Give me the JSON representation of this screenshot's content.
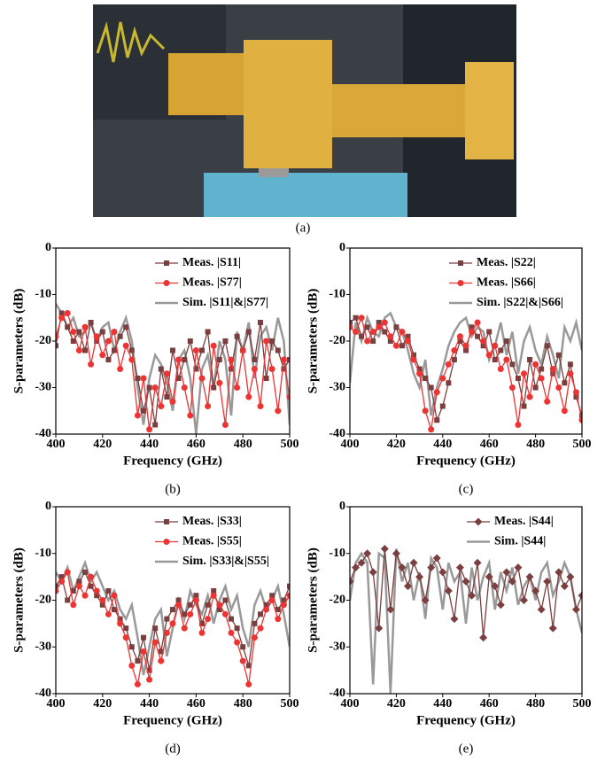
{
  "photo": {
    "caption": "(a)"
  },
  "chart_data": [
    {
      "type": "line",
      "caption": "(b)",
      "xlabel": "Frequency (GHz)",
      "ylabel": "S-parameters (dB)",
      "xlim": [
        400,
        500
      ],
      "ylim": [
        -40,
        0
      ],
      "xticks": [
        400,
        420,
        440,
        460,
        480,
        500
      ],
      "yticks": [
        -40,
        -30,
        -20,
        -10,
        0
      ],
      "x": [
        400,
        402.5,
        405,
        407.5,
        410,
        412.5,
        415,
        417.5,
        420,
        422.5,
        425,
        427.5,
        430,
        432.5,
        435,
        437.5,
        440,
        442.5,
        445,
        447.5,
        450,
        452.5,
        455,
        457.5,
        460,
        462.5,
        465,
        467.5,
        470,
        472.5,
        475,
        477.5,
        480,
        482.5,
        485,
        487.5,
        490,
        492.5,
        495,
        497.5,
        500
      ],
      "series": [
        {
          "name": "Meas. |S11|",
          "color": "#7b3f3f",
          "marker": "square",
          "values": [
            -21,
            -14,
            -17,
            -20,
            -18,
            -22,
            -16,
            -20,
            -18,
            -24,
            -22,
            -19,
            -17,
            -22,
            -28,
            -35,
            -30,
            -38,
            -26,
            -32,
            -22,
            -28,
            -24,
            -20,
            -26,
            -22,
            -18,
            -30,
            -24,
            -20,
            -26,
            -19,
            -22,
            -18,
            -24,
            -16,
            -28,
            -20,
            -22,
            -26,
            -24
          ]
        },
        {
          "name": "Meas. |S77|",
          "color": "#ee3333",
          "marker": "circle",
          "values": [
            -19,
            -15,
            -14,
            -18,
            -22,
            -17,
            -25,
            -19,
            -23,
            -20,
            -18,
            -26,
            -21,
            -24,
            -36,
            -28,
            -39,
            -30,
            -34,
            -27,
            -33,
            -24,
            -30,
            -36,
            -22,
            -28,
            -34,
            -21,
            -29,
            -38,
            -24,
            -30,
            -22,
            -32,
            -26,
            -34,
            -20,
            -26,
            -35,
            -24,
            -32
          ]
        },
        {
          "name": "Sim. |S11|&|S77|",
          "color": "#999999",
          "marker": "none",
          "values": [
            -12,
            -14,
            -17,
            -15,
            -19,
            -18,
            -16,
            -20,
            -17,
            -16,
            -22,
            -18,
            -15,
            -20,
            -30,
            -38,
            -28,
            -23,
            -25,
            -29,
            -35,
            -24,
            -22,
            -28,
            -40,
            -26,
            -23,
            -30,
            -20,
            -24,
            -36,
            -18,
            -22,
            -16,
            -28,
            -19,
            -17,
            -22,
            -15,
            -20,
            -38
          ]
        }
      ]
    },
    {
      "type": "line",
      "caption": "(c)",
      "xlabel": "Frequency (GHz)",
      "ylabel": "S-parameters (dB)",
      "xlim": [
        400,
        500
      ],
      "ylim": [
        -40,
        0
      ],
      "xticks": [
        400,
        420,
        440,
        460,
        480,
        500
      ],
      "yticks": [
        -40,
        -30,
        -20,
        -10,
        0
      ],
      "x": [
        400,
        402.5,
        405,
        407.5,
        410,
        412.5,
        415,
        417.5,
        420,
        422.5,
        425,
        427.5,
        430,
        432.5,
        435,
        437.5,
        440,
        442.5,
        445,
        447.5,
        450,
        452.5,
        455,
        457.5,
        460,
        462.5,
        465,
        467.5,
        470,
        472.5,
        475,
        477.5,
        480,
        482.5,
        485,
        487.5,
        490,
        492.5,
        495,
        497.5,
        500
      ],
      "series": [
        {
          "name": "Meas. |S22|",
          "color": "#7b3f3f",
          "marker": "square",
          "values": [
            -16,
            -15,
            -19,
            -17,
            -20,
            -16,
            -18,
            -20,
            -17,
            -21,
            -19,
            -23,
            -26,
            -28,
            -30,
            -37,
            -34,
            -29,
            -24,
            -20,
            -22,
            -17,
            -19,
            -21,
            -18,
            -24,
            -22,
            -20,
            -25,
            -28,
            -34,
            -24,
            -30,
            -26,
            -21,
            -27,
            -23,
            -29,
            -25,
            -32,
            -36
          ]
        },
        {
          "name": "Meas. |S66|",
          "color": "#ee3333",
          "marker": "circle",
          "values": [
            -17,
            -18,
            -15,
            -20,
            -18,
            -17,
            -16,
            -19,
            -21,
            -18,
            -20,
            -24,
            -27,
            -35,
            -39,
            -31,
            -28,
            -25,
            -22,
            -19,
            -21,
            -18,
            -16,
            -20,
            -23,
            -21,
            -26,
            -24,
            -30,
            -38,
            -27,
            -32,
            -25,
            -28,
            -33,
            -26,
            -30,
            -35,
            -27,
            -31,
            -37
          ]
        },
        {
          "name": "Sim. |S22|&|S66|",
          "color": "#999999",
          "marker": "none",
          "values": [
            -29,
            -16,
            -20,
            -15,
            -18,
            -19,
            -15,
            -14,
            -17,
            -18,
            -22,
            -27,
            -30,
            -24,
            -36,
            -30,
            -26,
            -21,
            -18,
            -16,
            -15,
            -19,
            -17,
            -18,
            -24,
            -21,
            -16,
            -23,
            -18,
            -27,
            -20,
            -17,
            -22,
            -25,
            -19,
            -23,
            -28,
            -17,
            -20,
            -16,
            -22
          ]
        }
      ]
    },
    {
      "type": "line",
      "caption": "(d)",
      "xlabel": "Frequency (GHz)",
      "ylabel": "S-parameters (dB)",
      "xlim": [
        400,
        500
      ],
      "ylim": [
        -40,
        0
      ],
      "xticks": [
        400,
        420,
        440,
        460,
        480,
        500
      ],
      "yticks": [
        -40,
        -30,
        -20,
        -10,
        0
      ],
      "x": [
        400,
        402.5,
        405,
        407.5,
        410,
        412.5,
        415,
        417.5,
        420,
        422.5,
        425,
        427.5,
        430,
        432.5,
        435,
        437.5,
        440,
        442.5,
        445,
        447.5,
        450,
        452.5,
        455,
        457.5,
        460,
        462.5,
        465,
        467.5,
        470,
        472.5,
        475,
        477.5,
        480,
        482.5,
        485,
        487.5,
        490,
        492.5,
        495,
        497.5,
        500
      ],
      "series": [
        {
          "name": "Meas. |S33|",
          "color": "#7b3f3f",
          "marker": "square",
          "values": [
            -17,
            -15,
            -20,
            -18,
            -16,
            -14,
            -17,
            -19,
            -21,
            -18,
            -22,
            -24,
            -26,
            -30,
            -33,
            -28,
            -35,
            -26,
            -31,
            -24,
            -22,
            -20,
            -23,
            -21,
            -19,
            -25,
            -21,
            -18,
            -22,
            -20,
            -24,
            -26,
            -30,
            -34,
            -25,
            -23,
            -21,
            -19,
            -22,
            -20,
            -17
          ]
        },
        {
          "name": "Meas. |S55|",
          "color": "#ee3333",
          "marker": "circle",
          "values": [
            -18,
            -16,
            -14,
            -21,
            -17,
            -19,
            -15,
            -18,
            -20,
            -23,
            -19,
            -25,
            -28,
            -34,
            -38,
            -31,
            -37,
            -29,
            -33,
            -27,
            -25,
            -21,
            -26,
            -23,
            -20,
            -27,
            -24,
            -19,
            -21,
            -23,
            -27,
            -29,
            -33,
            -38,
            -28,
            -26,
            -22,
            -20,
            -24,
            -21,
            -19
          ]
        },
        {
          "name": "Sim. |S33|&|S55|",
          "color": "#999999",
          "marker": "none",
          "values": [
            -14,
            -16,
            -13,
            -18,
            -15,
            -12,
            -16,
            -14,
            -17,
            -20,
            -18,
            -22,
            -24,
            -21,
            -28,
            -36,
            -30,
            -24,
            -22,
            -32,
            -26,
            -20,
            -24,
            -18,
            -21,
            -23,
            -19,
            -25,
            -20,
            -17,
            -22,
            -19,
            -26,
            -30,
            -21,
            -18,
            -22,
            -20,
            -17,
            -23,
            -30
          ]
        }
      ]
    },
    {
      "type": "line",
      "caption": "(e)",
      "xlabel": "Frequency (GHz)",
      "ylabel": "S-parameters (dB)",
      "xlim": [
        400,
        500
      ],
      "ylim": [
        -40,
        0
      ],
      "xticks": [
        400,
        420,
        440,
        460,
        480,
        500
      ],
      "yticks": [
        -40,
        -30,
        -20,
        -10,
        0
      ],
      "x": [
        400,
        402.5,
        405,
        407.5,
        410,
        412.5,
        415,
        417.5,
        420,
        422.5,
        425,
        427.5,
        430,
        432.5,
        435,
        437.5,
        440,
        442.5,
        445,
        447.5,
        450,
        452.5,
        455,
        457.5,
        460,
        462.5,
        465,
        467.5,
        470,
        472.5,
        475,
        477.5,
        480,
        482.5,
        485,
        487.5,
        490,
        492.5,
        495,
        497.5,
        500
      ],
      "series": [
        {
          "name": "Meas. |S44|",
          "color": "#7b3f3f",
          "marker": "diamond",
          "values": [
            -16,
            -13,
            -12,
            -10,
            -14,
            -26,
            -9,
            -22,
            -10,
            -13,
            -17,
            -12,
            -15,
            -20,
            -13,
            -11,
            -14,
            -18,
            -24,
            -13,
            -16,
            -19,
            -12,
            -28,
            -15,
            -17,
            -21,
            -14,
            -16,
            -13,
            -20,
            -15,
            -18,
            -22,
            -16,
            -26,
            -14,
            -17,
            -15,
            -22,
            -19
          ]
        },
        {
          "name": "Sim. |S44|",
          "color": "#999999",
          "marker": "none",
          "values": [
            -20,
            -12,
            -10,
            -12,
            -38,
            -10,
            -11,
            -40,
            -9,
            -16,
            -12,
            -20,
            -14,
            -24,
            -11,
            -13,
            -22,
            -12,
            -16,
            -14,
            -25,
            -13,
            -20,
            -15,
            -12,
            -22,
            -14,
            -18,
            -13,
            -21,
            -17,
            -15,
            -20,
            -14,
            -12,
            -19,
            -16,
            -12,
            -15,
            -22,
            -27
          ]
        }
      ]
    }
  ]
}
